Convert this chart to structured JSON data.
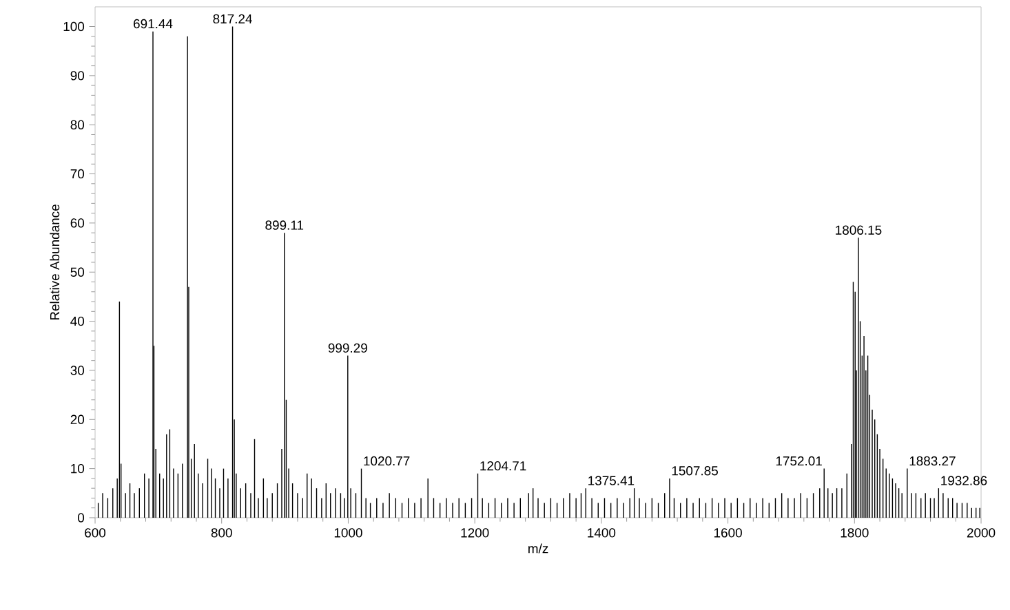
{
  "chart_data": {
    "type": "bar",
    "xlabel": "m/z",
    "ylabel": "Relative Abundance",
    "xlim": [
      600,
      2000
    ],
    "ylim": [
      0,
      104
    ],
    "xticks": [
      600,
      800,
      1000,
      1200,
      1400,
      1600,
      1800,
      2000
    ],
    "yticks": [
      0,
      10,
      20,
      30,
      40,
      50,
      60,
      70,
      80,
      90,
      100
    ],
    "color": "#000000",
    "x": [
      605,
      612,
      620,
      628,
      635,
      638.5,
      641,
      648,
      655,
      662,
      670,
      678,
      685,
      691.44,
      693,
      696,
      702,
      708,
      713,
      718,
      724,
      731,
      738,
      746,
      748,
      752,
      757,
      763,
      770,
      778,
      784,
      790,
      797,
      803,
      810,
      817.24,
      820,
      823,
      830,
      838,
      846,
      852,
      858,
      866,
      872,
      880,
      888,
      895,
      899.11,
      902,
      906,
      912,
      920,
      928,
      935,
      942,
      950,
      958,
      965,
      972,
      980,
      988,
      994,
      999.29,
      1004,
      1012,
      1020.77,
      1028,
      1035,
      1045,
      1055,
      1065,
      1075,
      1085,
      1095,
      1105,
      1115,
      1126,
      1135,
      1145,
      1155,
      1165,
      1175,
      1185,
      1195,
      1204.71,
      1212,
      1222,
      1232,
      1242,
      1252,
      1262,
      1272,
      1285,
      1292,
      1300,
      1310,
      1320,
      1330,
      1340,
      1350,
      1360,
      1368,
      1375.41,
      1385,
      1395,
      1405,
      1415,
      1425,
      1435,
      1445,
      1452,
      1460,
      1470,
      1480,
      1490,
      1500,
      1507.85,
      1515,
      1525,
      1535,
      1545,
      1555,
      1565,
      1575,
      1585,
      1595,
      1605,
      1615,
      1625,
      1635,
      1645,
      1655,
      1665,
      1675,
      1685,
      1695,
      1705,
      1715,
      1725,
      1735,
      1745,
      1752.01,
      1758,
      1765,
      1772,
      1780,
      1788,
      1795,
      1798,
      1801,
      1803,
      1806.15,
      1809,
      1812,
      1815,
      1818,
      1821,
      1824,
      1828,
      1832,
      1836,
      1840,
      1845,
      1850,
      1855,
      1860,
      1865,
      1870,
      1875,
      1883.27,
      1890,
      1897,
      1905,
      1912,
      1920,
      1926,
      1932.86,
      1940,
      1948,
      1955,
      1962,
      1970,
      1978,
      1985,
      1992,
      1998
    ],
    "values": [
      3,
      5,
      4,
      6,
      8,
      44,
      11,
      5,
      7,
      5,
      6,
      9,
      8,
      99,
      35,
      14,
      9,
      8,
      17,
      18,
      10,
      9,
      11,
      98,
      47,
      12,
      15,
      9,
      7,
      12,
      10,
      8,
      6,
      10,
      8,
      100,
      20,
      9,
      6,
      7,
      5,
      16,
      4,
      8,
      4,
      5,
      7,
      14,
      58,
      24,
      10,
      7,
      5,
      4,
      9,
      8,
      6,
      4,
      7,
      5,
      6,
      5,
      4,
      33,
      6,
      5,
      10,
      4,
      3,
      4,
      3,
      5,
      4,
      3,
      4,
      3,
      4,
      8,
      4,
      3,
      4,
      3,
      4,
      3,
      4,
      9,
      4,
      3,
      4,
      3,
      4,
      3,
      4,
      5,
      6,
      4,
      3,
      4,
      3,
      4,
      5,
      4,
      5,
      6,
      4,
      3,
      4,
      3,
      4,
      3,
      4,
      6,
      4,
      3,
      4,
      3,
      5,
      8,
      4,
      3,
      4,
      3,
      4,
      3,
      4,
      3,
      4,
      3,
      4,
      3,
      4,
      3,
      4,
      3,
      4,
      5,
      4,
      4,
      5,
      4,
      5,
      6,
      10,
      6,
      5,
      6,
      6,
      9,
      15,
      48,
      46,
      30,
      57,
      40,
      33,
      37,
      30,
      33,
      25,
      22,
      20,
      17,
      14,
      12,
      10,
      9,
      8,
      7,
      6,
      5,
      10,
      5,
      5,
      4,
      5,
      4,
      4,
      6,
      5,
      4,
      4,
      3,
      3,
      3,
      2,
      2,
      2
    ],
    "annotations": [
      {
        "text": "691.44",
        "x": 691.44,
        "y": 99
      },
      {
        "text": "817.24",
        "x": 817.24,
        "y": 100
      },
      {
        "text": "899.11",
        "x": 899.11,
        "y": 58
      },
      {
        "text": "999.29",
        "x": 999.29,
        "y": 33
      },
      {
        "text": "1020.77",
        "x": 1020.77,
        "y": 10
      },
      {
        "text": "1204.71",
        "x": 1204.71,
        "y": 9
      },
      {
        "text": "1375.41",
        "x": 1375.41,
        "y": 6
      },
      {
        "text": "1507.85",
        "x": 1507.85,
        "y": 8
      },
      {
        "text": "1752.01",
        "x": 1752.01,
        "y": 10
      },
      {
        "text": "1806.15",
        "x": 1806.15,
        "y": 57
      },
      {
        "text": "1883.27",
        "x": 1883.27,
        "y": 10
      },
      {
        "text": "1932.86",
        "x": 1932.86,
        "y": 6
      }
    ]
  }
}
